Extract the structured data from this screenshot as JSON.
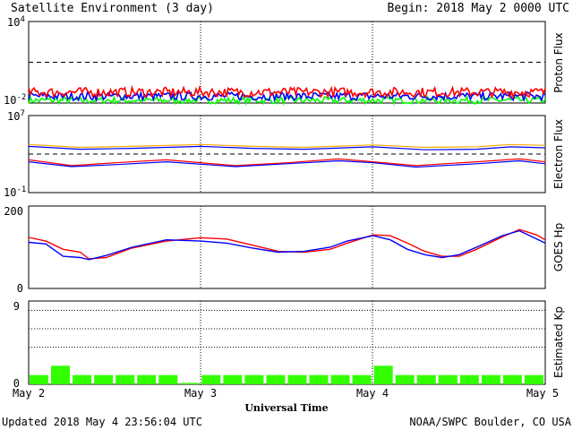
{
  "header": {
    "title": "Satellite Environment (3 day)",
    "begin": "Begin:  2018 May 2 0000 UTC"
  },
  "footer": {
    "updated": "Updated 2018 May  4 23:56:04 UTC",
    "source": "NOAA/SWPC Boulder, CO USA"
  },
  "x_axis": {
    "label": "Universal Time",
    "ticks": [
      "May 2",
      "May 3",
      "May 4",
      "May 5"
    ]
  },
  "colors": {
    "red": "#ff0000",
    "blue": "#0000ff",
    "green": "#00ff00",
    "orange": "#ffaa00",
    "kp_bar": "#33ff00"
  },
  "chart_data": [
    {
      "type": "line",
      "name": "proton_flux",
      "ylabel": "Proton Flux",
      "scale": "log",
      "ylim_exp": [
        -2,
        4
      ],
      "tick_labels": {
        "top": "10",
        "top_exp": "4",
        "bottom": "10",
        "bottom_exp": "-2"
      },
      "threshold_exp": 1,
      "x_days": [
        0,
        3
      ],
      "series": [
        {
          "color": "red",
          "base_exp": -1.2,
          "noise": 0.35
        },
        {
          "color": "blue",
          "base_exp": -1.5,
          "noise": 0.3
        },
        {
          "color": "green",
          "base_exp": -1.8,
          "noise": 0.25
        }
      ]
    },
    {
      "type": "line",
      "name": "electron_flux",
      "ylabel": "Electron Flux",
      "scale": "log",
      "ylim_exp": [
        -1,
        7
      ],
      "tick_labels": {
        "top": "10",
        "top_exp": "7",
        "bottom": "10",
        "bottom_exp": "-1"
      },
      "threshold_exp": 3,
      "x_days": [
        0,
        3
      ],
      "series": [
        {
          "color": "orange",
          "points": [
            [
              0,
              4.0
            ],
            [
              0.3,
              3.7
            ],
            [
              0.6,
              3.8
            ],
            [
              1.0,
              4.0
            ],
            [
              1.3,
              3.8
            ],
            [
              1.6,
              3.7
            ],
            [
              2.0,
              3.95
            ],
            [
              2.3,
              3.7
            ],
            [
              2.6,
              3.75
            ],
            [
              2.8,
              4.0
            ],
            [
              3.0,
              3.9
            ]
          ]
        },
        {
          "color": "blue",
          "points": [
            [
              0,
              3.8
            ],
            [
              0.3,
              3.5
            ],
            [
              0.6,
              3.6
            ],
            [
              1.0,
              3.8
            ],
            [
              1.3,
              3.6
            ],
            [
              1.6,
              3.5
            ],
            [
              2.0,
              3.75
            ],
            [
              2.3,
              3.45
            ],
            [
              2.6,
              3.5
            ],
            [
              2.8,
              3.75
            ],
            [
              3.0,
              3.65
            ]
          ]
        },
        {
          "color": "red",
          "points": [
            [
              0,
              2.4
            ],
            [
              0.25,
              1.8
            ],
            [
              0.5,
              2.1
            ],
            [
              0.8,
              2.4
            ],
            [
              1.2,
              1.8
            ],
            [
              1.5,
              2.1
            ],
            [
              1.8,
              2.5
            ],
            [
              2.0,
              2.2
            ],
            [
              2.25,
              1.8
            ],
            [
              2.6,
              2.2
            ],
            [
              2.85,
              2.5
            ],
            [
              3.0,
              2.2
            ]
          ]
        },
        {
          "color": "blue",
          "points": [
            [
              0,
              2.2
            ],
            [
              0.25,
              1.7
            ],
            [
              0.5,
              1.9
            ],
            [
              0.8,
              2.2
            ],
            [
              1.2,
              1.7
            ],
            [
              1.5,
              2.0
            ],
            [
              1.8,
              2.3
            ],
            [
              2.0,
              2.1
            ],
            [
              2.25,
              1.65
            ],
            [
              2.6,
              2.0
            ],
            [
              2.85,
              2.3
            ],
            [
              3.0,
              2.0
            ]
          ]
        }
      ]
    },
    {
      "type": "line",
      "name": "goes_hp",
      "ylabel": "GOES Hp",
      "scale": "linear",
      "ylim": [
        0,
        200
      ],
      "tick_labels": {
        "top": "200",
        "bottom": "0"
      },
      "x_days": [
        0,
        3
      ],
      "series": [
        {
          "color": "red",
          "points": [
            [
              0,
              124
            ],
            [
              0.1,
              115
            ],
            [
              0.2,
              95
            ],
            [
              0.3,
              88
            ],
            [
              0.35,
              72
            ],
            [
              0.45,
              75
            ],
            [
              0.6,
              98
            ],
            [
              0.8,
              115
            ],
            [
              1.0,
              123
            ],
            [
              1.15,
              120
            ],
            [
              1.3,
              105
            ],
            [
              1.45,
              90
            ],
            [
              1.6,
              88
            ],
            [
              1.75,
              95
            ],
            [
              1.85,
              110
            ],
            [
              2.0,
              130
            ],
            [
              2.1,
              128
            ],
            [
              2.2,
              110
            ],
            [
              2.3,
              90
            ],
            [
              2.4,
              78
            ],
            [
              2.5,
              78
            ],
            [
              2.6,
              95
            ],
            [
              2.75,
              125
            ],
            [
              2.85,
              143
            ],
            [
              2.95,
              130
            ],
            [
              3.0,
              118
            ]
          ]
        },
        {
          "color": "blue",
          "points": [
            [
              0,
              112
            ],
            [
              0.1,
              108
            ],
            [
              0.2,
              78
            ],
            [
              0.3,
              75
            ],
            [
              0.35,
              70
            ],
            [
              0.45,
              80
            ],
            [
              0.6,
              100
            ],
            [
              0.8,
              118
            ],
            [
              1.0,
              115
            ],
            [
              1.15,
              110
            ],
            [
              1.3,
              98
            ],
            [
              1.45,
              88
            ],
            [
              1.6,
              90
            ],
            [
              1.75,
              100
            ],
            [
              1.85,
              115
            ],
            [
              2.0,
              128
            ],
            [
              2.1,
              118
            ],
            [
              2.2,
              95
            ],
            [
              2.3,
              82
            ],
            [
              2.4,
              75
            ],
            [
              2.5,
              82
            ],
            [
              2.6,
              100
            ],
            [
              2.75,
              128
            ],
            [
              2.85,
              140
            ],
            [
              2.95,
              120
            ],
            [
              3.0,
              110
            ]
          ]
        }
      ]
    },
    {
      "type": "bar",
      "name": "estimated_kp",
      "ylabel": "Estimated Kp",
      "ylim": [
        0,
        9
      ],
      "tick_labels": {
        "top": "9",
        "bottom": "0"
      },
      "gridlines": [
        4,
        6,
        8
      ],
      "bar_hours": 3,
      "values": [
        1,
        2,
        1,
        1,
        1,
        1,
        1,
        0,
        1,
        1,
        1,
        1,
        1,
        1,
        1,
        1,
        2,
        1,
        1,
        1,
        1,
        1,
        1,
        1
      ]
    }
  ]
}
